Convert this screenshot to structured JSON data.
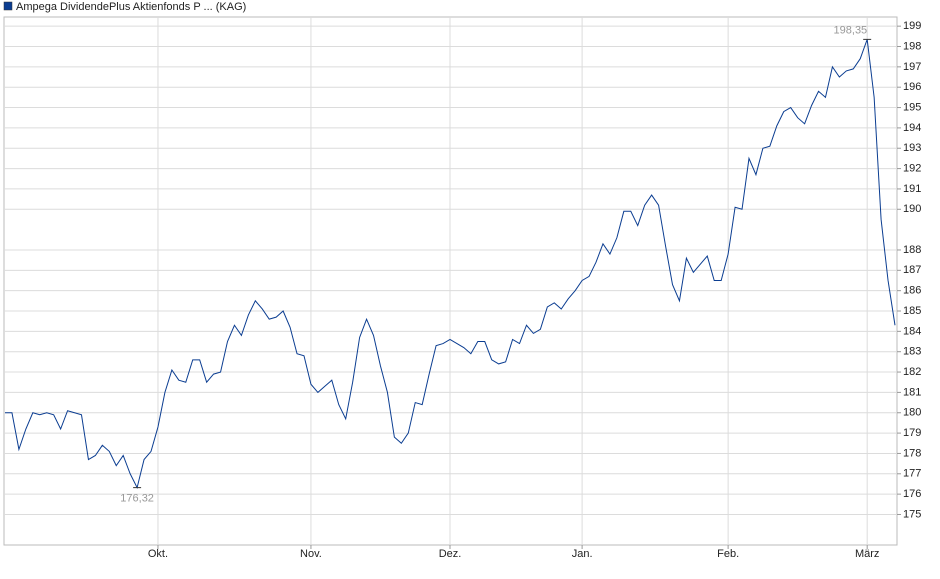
{
  "chart_data": {
    "type": "line",
    "series": [
      {
        "name": "Ampega DividendePlus Aktienfonds P ... (KAG)",
        "color": "#0b3d91",
        "values": [
          180.0,
          180.0,
          178.2,
          179.2,
          180.0,
          179.9,
          180.0,
          179.9,
          179.2,
          180.1,
          180.0,
          179.9,
          177.7,
          177.9,
          178.4,
          178.1,
          177.4,
          177.9,
          177.0,
          176.32,
          177.7,
          178.1,
          179.3,
          181.0,
          182.1,
          181.6,
          181.5,
          182.6,
          182.6,
          181.5,
          181.9,
          182.0,
          183.5,
          184.3,
          183.8,
          184.8,
          185.5,
          185.1,
          184.6,
          184.7,
          185.0,
          184.2,
          182.9,
          182.8,
          181.4,
          181.0,
          181.3,
          181.6,
          180.4,
          179.7,
          181.5,
          183.7,
          184.6,
          183.8,
          182.3,
          181.0,
          178.8,
          178.5,
          179.0,
          180.5,
          180.4,
          181.9,
          183.3,
          183.4,
          183.6,
          183.4,
          183.2,
          182.9,
          183.5,
          183.5,
          182.6,
          182.4,
          182.5,
          183.6,
          183.4,
          184.3,
          183.9,
          184.1,
          185.2,
          185.4,
          185.1,
          185.6,
          186.0,
          186.5,
          186.7,
          187.4,
          188.3,
          187.8,
          188.6,
          189.9,
          189.9,
          189.2,
          190.2,
          190.7,
          190.2,
          188.2,
          186.3,
          185.5,
          187.6,
          186.9,
          187.3,
          187.7,
          186.5,
          186.5,
          187.8,
          190.1,
          190.0,
          192.5,
          191.7,
          193.0,
          193.1,
          194.1,
          194.8,
          195.0,
          194.5,
          194.2,
          195.1,
          195.8,
          195.5,
          197.0,
          196.5,
          196.8,
          196.9,
          197.4,
          198.35,
          195.5,
          189.5,
          186.5,
          184.3
        ]
      }
    ],
    "xlim": [
      0,
      128
    ],
    "xticks": [
      {
        "value": 22,
        "label": "Okt."
      },
      {
        "value": 44,
        "label": "Nov."
      },
      {
        "value": 64,
        "label": "Dez."
      },
      {
        "value": 83,
        "label": "Jan."
      },
      {
        "value": 104,
        "label": "Feb."
      },
      {
        "value": 124,
        "label": "März"
      }
    ],
    "ylim": [
      173.5,
      199.45
    ],
    "yticks": [
      175,
      176,
      177,
      178,
      179,
      180,
      181,
      182,
      183,
      184,
      185,
      186,
      187,
      188,
      190,
      191,
      192,
      193,
      194,
      195,
      196,
      197,
      198,
      199
    ],
    "annotations": [
      {
        "x": 124,
        "y": 198.35,
        "label": "198,35"
      },
      {
        "x": 19,
        "y": 176.32,
        "label": "176,32"
      }
    ],
    "grid": true
  }
}
